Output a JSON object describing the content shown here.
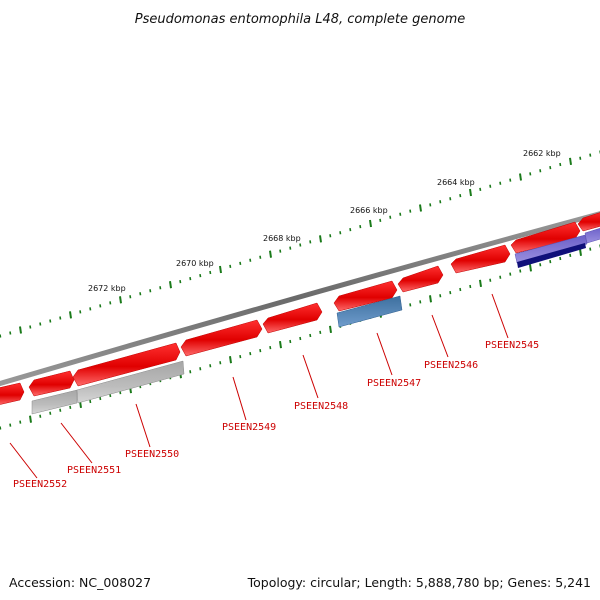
{
  "title": "Pseudomonas entomophila L48, complete genome",
  "scale_labels": [
    "2662 kbp",
    "2664 kbp",
    "2666 kbp",
    "2668 kbp",
    "2670 kbp",
    "2672 kbp"
  ],
  "gene_labels": [
    "PSEEN2545",
    "PSEEN2546",
    "PSEEN2547",
    "PSEEN2548",
    "PSEEN2549",
    "PSEEN2550",
    "PSEEN2551",
    "PSEEN2552"
  ],
  "footer": {
    "accession": "Accession: NC_008027",
    "summary": "Topology: circular; Length: 5,888,780 bp; Genes: 5,241"
  },
  "colors": {
    "backbone": "#7a7a7a",
    "tick": "#1a7a1a",
    "gene_forward": "#ee0000",
    "gene_gray": "#b0b0b0",
    "gene_blue": "#4a7fb0",
    "gene_purple": "#7b6fd0",
    "gene_navy": "#10107a",
    "label_red": "#cc0000"
  }
}
